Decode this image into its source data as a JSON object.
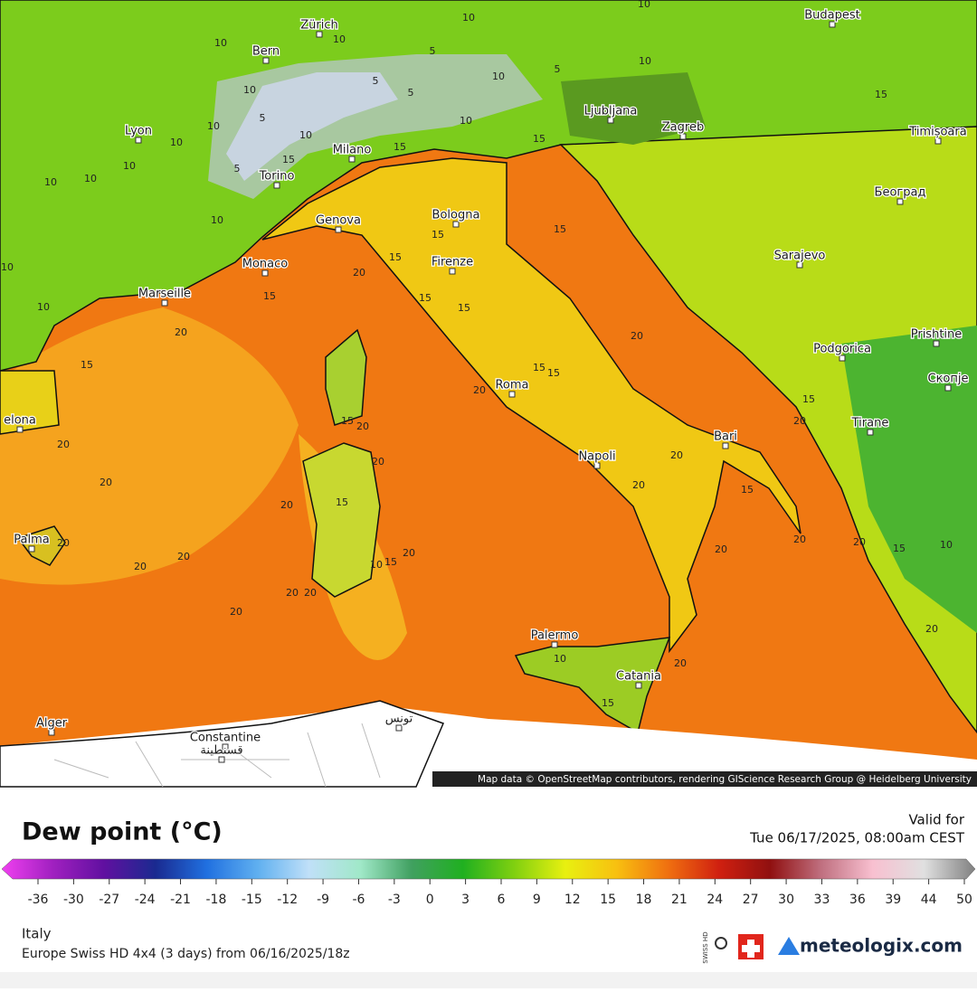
{
  "map": {
    "cities": [
      "Budapest",
      "Zürich",
      "Bern",
      "Ljubljana",
      "Zagreb",
      "Timișoara",
      "Lyon",
      "Milano",
      "Torino",
      "Београд",
      "Genova",
      "Bologna",
      "Sarajevo",
      "Monaco",
      "Firenze",
      "Marseille",
      "Prishtine",
      "Podgorica",
      "Roma",
      "Скопје",
      "Tirane",
      "elona",
      "Bari",
      "Napoli",
      "Palma",
      "Palermo",
      "Catania",
      "Alger",
      "Constantine",
      "قسنطينة",
      "تونس"
    ],
    "contour_labels": [
      10,
      10,
      10,
      10,
      5,
      5,
      5,
      5,
      10,
      10,
      15,
      10,
      5,
      10,
      10,
      10,
      5,
      10,
      10,
      10,
      10,
      15,
      15,
      15,
      10,
      15,
      15,
      10,
      10,
      15,
      20,
      15,
      15,
      15,
      20,
      15,
      20,
      15,
      15,
      20,
      15,
      20,
      15,
      20,
      20,
      20,
      20,
      20,
      20,
      15,
      20,
      15,
      20,
      20,
      20,
      20,
      15,
      10,
      20,
      20,
      20,
      15,
      10,
      20,
      20,
      20,
      20,
      10,
      20,
      15
    ],
    "attribution": "Map data © OpenStreetMap contributors, rendering GIScience Research Group @ Heidelberg University"
  },
  "legend": {
    "title": "Dew point (°C)",
    "valid_label": "Valid for",
    "valid_time": "Tue 06/17/2025, 08:00am CEST",
    "ticks": [
      -36,
      -30,
      -27,
      -24,
      -21,
      -18,
      -15,
      -12,
      -9,
      -6,
      -3,
      0,
      3,
      6,
      9,
      12,
      15,
      18,
      21,
      24,
      27,
      30,
      33,
      36,
      39,
      44,
      50
    ],
    "colors": [
      "#f040f0",
      "#a020c0",
      "#6010a0",
      "#1a2a90",
      "#2070e0",
      "#60b0f0",
      "#c0e0f8",
      "#a0e8c8",
      "#40a060",
      "#20b020",
      "#80d010",
      "#e8f010",
      "#f8c010",
      "#f07010",
      "#d02010",
      "#901010",
      "#c07080",
      "#f8c0d0",
      "#e0e0e0",
      "#808080"
    ]
  },
  "footer": {
    "region": "Italy",
    "model": "Europe Swiss HD 4x4 (3 days) from 06/16/2025/18z",
    "swiss_hd": "SWISS HD",
    "brand": "meteologix.com"
  }
}
